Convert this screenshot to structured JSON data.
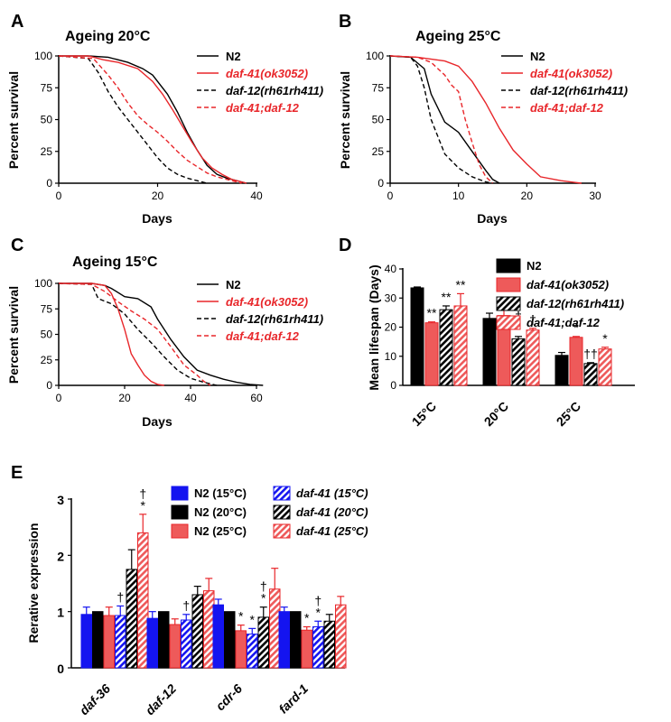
{
  "colors": {
    "black": "#000000",
    "red": "#e8262a",
    "lightred": "#ee5a5a",
    "blue": "#1414f0"
  },
  "chart_data": [
    {
      "panel": "A",
      "type": "line",
      "title": "Ageing 20°C",
      "xlabel": "Days",
      "ylabel": "Percent survival",
      "xlim": [
        0,
        40
      ],
      "ylim": [
        0,
        100
      ],
      "xticks": [
        0,
        20,
        40
      ],
      "yticks": [
        0,
        25,
        50,
        75,
        100
      ],
      "legend": "top-right",
      "series": [
        {
          "name": "N2",
          "color": "#000000",
          "dash": false,
          "points": [
            [
              0,
              100
            ],
            [
              6,
              100
            ],
            [
              10,
              99
            ],
            [
              14,
              95
            ],
            [
              17,
              90
            ],
            [
              19,
              85
            ],
            [
              22,
              70
            ],
            [
              24,
              56
            ],
            [
              26,
              40
            ],
            [
              28,
              26
            ],
            [
              30,
              14
            ],
            [
              32,
              7
            ],
            [
              34,
              4
            ],
            [
              36,
              2
            ],
            [
              38,
              0
            ]
          ]
        },
        {
          "name": "daf-41(ok3052)",
          "color": "#e8262a",
          "dash": false,
          "points": [
            [
              0,
              100
            ],
            [
              6,
              100
            ],
            [
              9,
              97
            ],
            [
              12,
              95
            ],
            [
              16,
              90
            ],
            [
              19,
              80
            ],
            [
              21,
              70
            ],
            [
              23,
              58
            ],
            [
              25,
              45
            ],
            [
              27,
              32
            ],
            [
              29,
              20
            ],
            [
              31,
              12
            ],
            [
              33,
              7
            ],
            [
              35,
              3
            ],
            [
              38,
              0
            ]
          ]
        },
        {
          "name": "daf-12(rh61rh411)",
          "color": "#000000",
          "dash": true,
          "points": [
            [
              0,
              100
            ],
            [
              6,
              98
            ],
            [
              8,
              87
            ],
            [
              10,
              72
            ],
            [
              12,
              60
            ],
            [
              14,
              50
            ],
            [
              16,
              40
            ],
            [
              18,
              30
            ],
            [
              20,
              20
            ],
            [
              22,
              12
            ],
            [
              24,
              7
            ],
            [
              26,
              4
            ],
            [
              28,
              2
            ],
            [
              30,
              0
            ]
          ]
        },
        {
          "name": "daf-41;daf-12",
          "color": "#e8262a",
          "dash": true,
          "points": [
            [
              0,
              100
            ],
            [
              7,
              98
            ],
            [
              10,
              85
            ],
            [
              12,
              75
            ],
            [
              14,
              63
            ],
            [
              16,
              53
            ],
            [
              18,
              46
            ],
            [
              20,
              40
            ],
            [
              22,
              33
            ],
            [
              24,
              25
            ],
            [
              26,
              18
            ],
            [
              28,
              13
            ],
            [
              30,
              8
            ],
            [
              32,
              5
            ],
            [
              35,
              2
            ],
            [
              37,
              0
            ]
          ]
        }
      ]
    },
    {
      "panel": "B",
      "type": "line",
      "title": "Ageing 25°C",
      "xlabel": "Days",
      "ylabel": "Percent survival",
      "xlim": [
        0,
        30
      ],
      "ylim": [
        0,
        100
      ],
      "xticks": [
        0,
        10,
        20,
        30
      ],
      "yticks": [
        0,
        25,
        50,
        75,
        100
      ],
      "legend": "top-right",
      "series": [
        {
          "name": "N2",
          "color": "#000000",
          "dash": false,
          "points": [
            [
              0,
              100
            ],
            [
              3,
              99
            ],
            [
              5,
              90
            ],
            [
              6,
              70
            ],
            [
              8,
              48
            ],
            [
              10,
              40
            ],
            [
              12,
              25
            ],
            [
              14,
              10
            ],
            [
              15,
              3
            ],
            [
              16,
              0
            ]
          ]
        },
        {
          "name": "daf-41(ok3052)",
          "color": "#e8262a",
          "dash": false,
          "points": [
            [
              0,
              100
            ],
            [
              4,
              99
            ],
            [
              8,
              96
            ],
            [
              10,
              92
            ],
            [
              12,
              80
            ],
            [
              14,
              63
            ],
            [
              16,
              43
            ],
            [
              18,
              26
            ],
            [
              20,
              15
            ],
            [
              22,
              5
            ],
            [
              25,
              2
            ],
            [
              28,
              0
            ]
          ]
        },
        {
          "name": "daf-12(rh61rh411)",
          "color": "#000000",
          "dash": true,
          "points": [
            [
              0,
              100
            ],
            [
              3,
              99
            ],
            [
              4,
              92
            ],
            [
              5,
              75
            ],
            [
              6,
              50
            ],
            [
              8,
              23
            ],
            [
              10,
              12
            ],
            [
              12,
              5
            ],
            [
              14,
              1
            ],
            [
              15,
              0
            ]
          ]
        },
        {
          "name": "daf-41;daf-12",
          "color": "#e8262a",
          "dash": true,
          "points": [
            [
              0,
              100
            ],
            [
              4,
              99
            ],
            [
              6,
              95
            ],
            [
              8,
              85
            ],
            [
              9,
              77
            ],
            [
              10,
              72
            ],
            [
              11,
              50
            ],
            [
              12,
              32
            ],
            [
              13,
              15
            ],
            [
              14,
              5
            ],
            [
              15,
              0
            ]
          ]
        }
      ]
    },
    {
      "panel": "C",
      "type": "line",
      "title": "Ageing 15°C",
      "xlabel": "Days",
      "ylabel": "Percent survival",
      "xlim": [
        0,
        60
      ],
      "ylim": [
        0,
        100
      ],
      "xticks": [
        0,
        20,
        40,
        60
      ],
      "yticks": [
        0,
        25,
        50,
        75,
        100
      ],
      "legend": "top-right",
      "series": [
        {
          "name": "N2",
          "color": "#000000",
          "dash": false,
          "points": [
            [
              0,
              100
            ],
            [
              10,
              100
            ],
            [
              14,
              98
            ],
            [
              16,
              95
            ],
            [
              20,
              87
            ],
            [
              24,
              85
            ],
            [
              28,
              77
            ],
            [
              30,
              65
            ],
            [
              34,
              45
            ],
            [
              38,
              28
            ],
            [
              42,
              15
            ],
            [
              46,
              10
            ],
            [
              50,
              6
            ],
            [
              54,
              3
            ],
            [
              58,
              1
            ],
            [
              62,
              0
            ]
          ]
        },
        {
          "name": "daf-41(ok3052)",
          "color": "#e8262a",
          "dash": false,
          "points": [
            [
              0,
              100
            ],
            [
              10,
              100
            ],
            [
              14,
              98
            ],
            [
              16,
              90
            ],
            [
              18,
              75
            ],
            [
              20,
              55
            ],
            [
              22,
              31
            ],
            [
              24,
              20
            ],
            [
              26,
              10
            ],
            [
              28,
              4
            ],
            [
              30,
              1
            ],
            [
              32,
              0
            ]
          ]
        },
        {
          "name": "daf-12(rh61rh411)",
          "color": "#000000",
          "dash": true,
          "points": [
            [
              0,
              100
            ],
            [
              10,
              99
            ],
            [
              12,
              85
            ],
            [
              16,
              80
            ],
            [
              20,
              70
            ],
            [
              24,
              55
            ],
            [
              28,
              42
            ],
            [
              32,
              28
            ],
            [
              36,
              15
            ],
            [
              40,
              7
            ],
            [
              44,
              3
            ],
            [
              48,
              0
            ]
          ]
        },
        {
          "name": "daf-41;daf-12",
          "color": "#e8262a",
          "dash": true,
          "points": [
            [
              0,
              100
            ],
            [
              10,
              99
            ],
            [
              14,
              92
            ],
            [
              18,
              82
            ],
            [
              22,
              73
            ],
            [
              26,
              65
            ],
            [
              30,
              55
            ],
            [
              34,
              38
            ],
            [
              38,
              20
            ],
            [
              42,
              10
            ],
            [
              44,
              4
            ],
            [
              46,
              0
            ]
          ]
        }
      ]
    },
    {
      "panel": "D",
      "type": "bar",
      "ylabel": "Mean lifespan (Days)",
      "ylim": [
        0,
        40
      ],
      "yticks": [
        0,
        10,
        20,
        30,
        40
      ],
      "categories": [
        "15°C",
        "20°C",
        "25°C"
      ],
      "legend": "top-right",
      "series": [
        {
          "name": "N2",
          "fill": "solid-black",
          "values": [
            33.5,
            23.0,
            10.3
          ],
          "errors": [
            0.3,
            1.8,
            1.0
          ],
          "annotations": [
            "",
            "",
            ""
          ]
        },
        {
          "name": "daf-41(ok3052)",
          "fill": "solid-red",
          "values": [
            21.5,
            24.0,
            16.5
          ],
          "errors": [
            0.3,
            1.8,
            0.3
          ],
          "annotations": [
            "**",
            "",
            "*"
          ]
        },
        {
          "name": "daf-12(rh61rh411)",
          "fill": "hatched-black",
          "values": [
            26.0,
            16.0,
            7.5
          ],
          "errors": [
            1.3,
            0.8,
            0.3
          ],
          "annotations": [
            "**",
            "†\n*",
            "††"
          ]
        },
        {
          "name": "daf-41;daf-12",
          "fill": "hatched-red",
          "values": [
            27.3,
            19.0,
            12.5
          ],
          "errors": [
            4.2,
            0.6,
            0.6
          ],
          "annotations": [
            "**",
            "†",
            "*"
          ]
        }
      ]
    },
    {
      "panel": "E",
      "type": "bar",
      "ylabel": "Rerative expression",
      "ylim": [
        0,
        3
      ],
      "yticks": [
        0,
        1,
        2,
        3
      ],
      "categories": [
        "daf-36",
        "daf-12",
        "cdr-6",
        "fard-1"
      ],
      "legend": "top",
      "series": [
        {
          "name": "N2 (15°C)",
          "fill": "solid-blue",
          "values": [
            0.95,
            0.88,
            1.12,
            1.0
          ],
          "errors": [
            0.13,
            0.12,
            0.1,
            0.08
          ],
          "annotations": [
            "",
            "",
            "",
            ""
          ]
        },
        {
          "name": "N2 (20°C)",
          "fill": "solid-black",
          "values": [
            1.0,
            1.0,
            1.0,
            1.0
          ],
          "errors": [
            0.0,
            0.0,
            0.0,
            0.0
          ],
          "annotations": [
            "",
            "",
            "",
            ""
          ]
        },
        {
          "name": "N2 (25°C)",
          "fill": "solid-red",
          "values": [
            0.93,
            0.77,
            0.66,
            0.67
          ],
          "errors": [
            0.15,
            0.1,
            0.1,
            0.06
          ],
          "annotations": [
            "",
            "",
            "*",
            "*"
          ]
        },
        {
          "name": "daf-41 (15°C)",
          "fill": "hatched-blue",
          "values": [
            0.93,
            0.85,
            0.6,
            0.73
          ],
          "errors": [
            0.17,
            0.1,
            0.1,
            0.1
          ],
          "annotations": [
            "†",
            "†",
            "*",
            "†\n*"
          ]
        },
        {
          "name": "daf-41 (20°C)",
          "fill": "hatched-black",
          "values": [
            1.75,
            1.3,
            0.9,
            0.83
          ],
          "errors": [
            0.35,
            0.15,
            0.18,
            0.12
          ],
          "annotations": [
            "",
            "",
            "†\n*",
            ""
          ]
        },
        {
          "name": "daf-41 (25°C)",
          "fill": "hatched-red",
          "values": [
            2.4,
            1.37,
            1.4,
            1.12
          ],
          "errors": [
            0.33,
            0.22,
            0.37,
            0.15
          ],
          "annotations": [
            "†\n*",
            "",
            "",
            ""
          ]
        }
      ]
    }
  ]
}
